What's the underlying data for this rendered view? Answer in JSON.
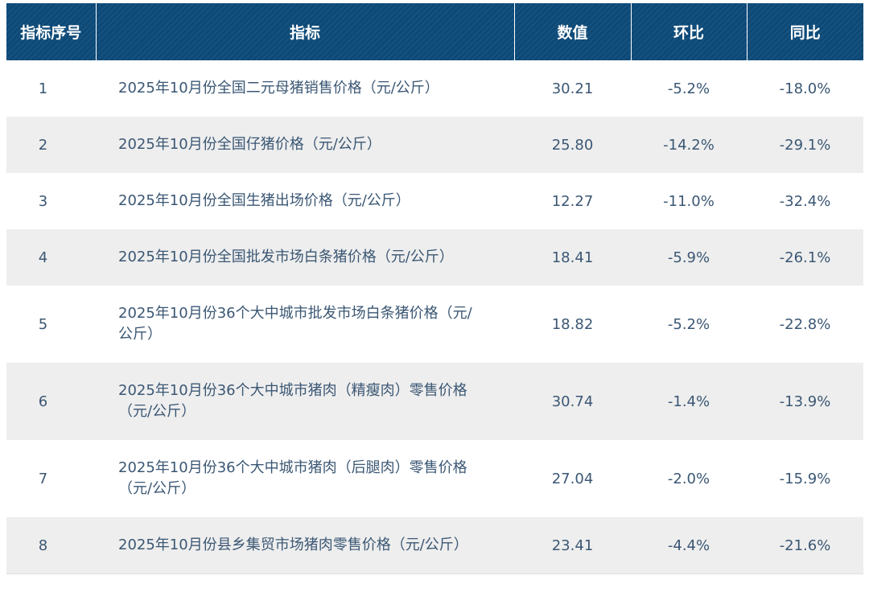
{
  "table": {
    "headers": [
      "指标序号",
      "指标",
      "数值",
      "环比",
      "同比"
    ],
    "rows": [
      {
        "idx": "1",
        "name": "2025年10月份全国二元母猪销售价格（元/公斤）",
        "value": "30.21",
        "mom": "-5.2%",
        "yoy": "-18.0%"
      },
      {
        "idx": "2",
        "name": "2025年10月份全国仔猪价格（元/公斤）",
        "value": "25.80",
        "mom": "-14.2%",
        "yoy": "-29.1%"
      },
      {
        "idx": "3",
        "name": "2025年10月份全国生猪出场价格（元/公斤）",
        "value": "12.27",
        "mom": "-11.0%",
        "yoy": "-32.4%"
      },
      {
        "idx": "4",
        "name": "2025年10月份全国批发市场白条猪价格（元/公斤）",
        "value": "18.41",
        "mom": "-5.9%",
        "yoy": "-26.1%"
      },
      {
        "idx": "5",
        "name": "2025年10月份36个大中城市批发市场白条猪价格（元/公斤）",
        "value": "18.82",
        "mom": "-5.2%",
        "yoy": "-22.8%"
      },
      {
        "idx": "6",
        "name": "2025年10月份36个大中城市猪肉（精瘦肉）零售价格（元/公斤）",
        "value": "30.74",
        "mom": "-1.4%",
        "yoy": "-13.9%"
      },
      {
        "idx": "7",
        "name": "2025年10月份36个大中城市猪肉（后腿肉）零售价格（元/公斤）",
        "value": "27.04",
        "mom": "-2.0%",
        "yoy": "-15.9%"
      },
      {
        "idx": "8",
        "name": "2025年10月份县乡集贸市场猪肉零售价格（元/公斤）",
        "value": "23.41",
        "mom": "-4.4%",
        "yoy": "-21.6%"
      }
    ]
  },
  "colors": {
    "header_bg": "#0d4a78",
    "header_text": "#ffffff",
    "body_text": "#3b5774",
    "stripe": "#eeeeee"
  }
}
